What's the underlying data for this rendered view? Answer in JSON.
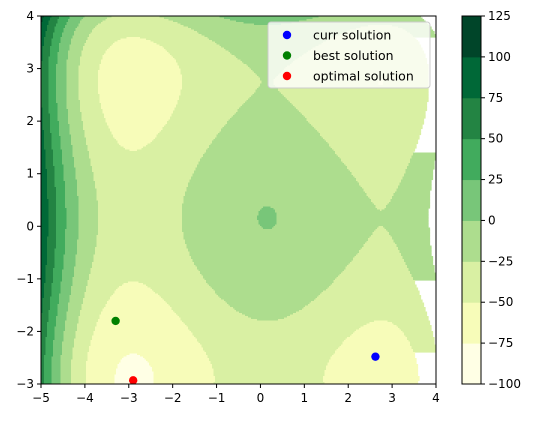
{
  "chart_data": {
    "type": "contour",
    "xlim": [
      -5,
      4
    ],
    "ylim": [
      -3,
      4
    ],
    "x_ticks": [
      -5,
      -4,
      -3,
      -2,
      -1,
      0,
      1,
      2,
      3,
      4
    ],
    "y_ticks": [
      -3,
      -2,
      -1,
      0,
      1,
      2,
      3,
      4
    ],
    "x_tick_labels": [
      "−5",
      "−4",
      "−3",
      "−2",
      "−1",
      "0",
      "1",
      "2",
      "3",
      "4"
    ],
    "y_tick_labels": [
      "−3",
      "−2",
      "−1",
      "0",
      "1",
      "2",
      "3",
      "4"
    ],
    "colorbar": {
      "levels": [
        -100,
        -75,
        -50,
        -25,
        0,
        25,
        50,
        75,
        100,
        125
      ],
      "tick_labels": [
        "−100",
        "−75",
        "−50",
        "−25",
        "0",
        "25",
        "50",
        "75",
        "100",
        "125"
      ],
      "colors": [
        "#ffffe5",
        "#f7fcb9",
        "#d9f0a3",
        "#addd8e",
        "#78c679",
        "#41ab5d",
        "#238443",
        "#006837",
        "#004529"
      ]
    },
    "series": [
      {
        "name": "curr solution",
        "color": "#0000ff",
        "points": [
          [
            2.62,
            -2.48
          ]
        ]
      },
      {
        "name": "best solution",
        "color": "#008000",
        "points": [
          [
            -3.3,
            -1.8
          ]
        ]
      },
      {
        "name": "optimal solution",
        "color": "#ff0000",
        "points": [
          [
            -2.9,
            -2.93
          ]
        ]
      }
    ],
    "legend_position": "top-right"
  }
}
